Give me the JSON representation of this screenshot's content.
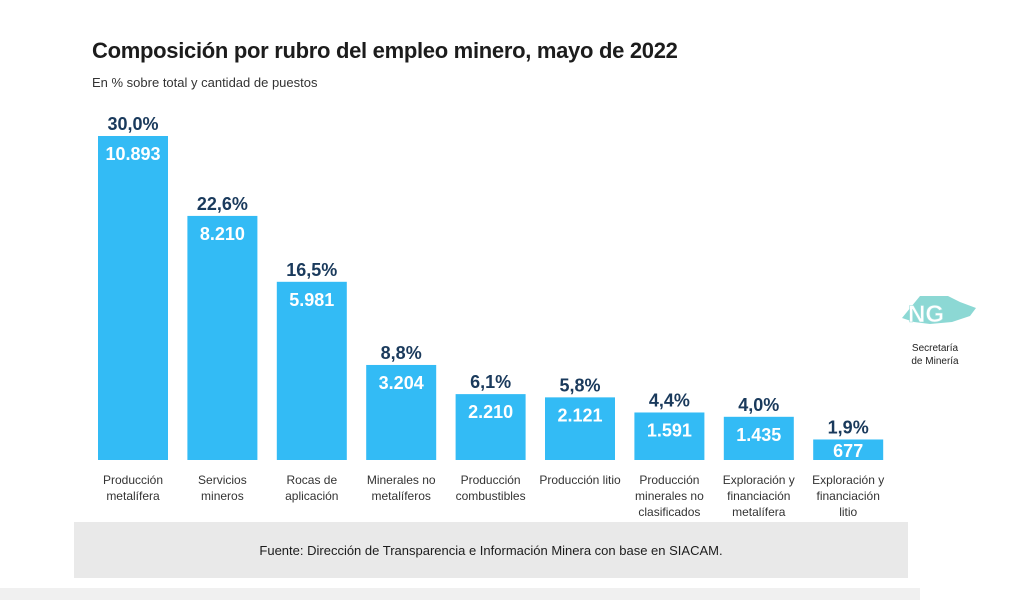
{
  "header": {
    "title": "Composición por rubro del empleo minero, mayo de 2022",
    "subtitle": "En % sobre total y cantidad de puestos"
  },
  "footer": {
    "source": "Fuente: Dirección de Transparencia e Información Minera con base en SIACAM."
  },
  "logo": {
    "mark": "NG",
    "line1": "Secretaría",
    "line2": "de Minería"
  },
  "colors": {
    "bar": "#33bbf5",
    "pct_text": "#1a3a5c",
    "footer_bg": "#e9e9e9"
  },
  "chart_data": {
    "type": "bar",
    "categories": [
      [
        "Producción",
        "metalífera"
      ],
      [
        "Servicios",
        "mineros"
      ],
      [
        "Rocas de",
        "aplicación"
      ],
      [
        "Minerales no",
        "metalíferos"
      ],
      [
        "Producción",
        "combustibles"
      ],
      [
        "Producción litio"
      ],
      [
        "Producción",
        "minerales no",
        "clasificados"
      ],
      [
        "Exploración y",
        "financiación",
        "metalífera"
      ],
      [
        "Exploración y",
        "financiación",
        "litio"
      ]
    ],
    "values": [
      30.0,
      22.6,
      16.5,
      8.8,
      6.1,
      5.8,
      4.4,
      4.0,
      1.9
    ],
    "pct_labels": [
      "30,0%",
      "22,6%",
      "16,5%",
      "8,8%",
      "6,1%",
      "5,8%",
      "4,4%",
      "4,0%",
      "1,9%"
    ],
    "count_labels": [
      "10.893",
      "8.210",
      "5.981",
      "3.204",
      "2.210",
      "2.121",
      "1.591",
      "1.435",
      "677"
    ],
    "ylim": [
      0,
      30
    ]
  }
}
